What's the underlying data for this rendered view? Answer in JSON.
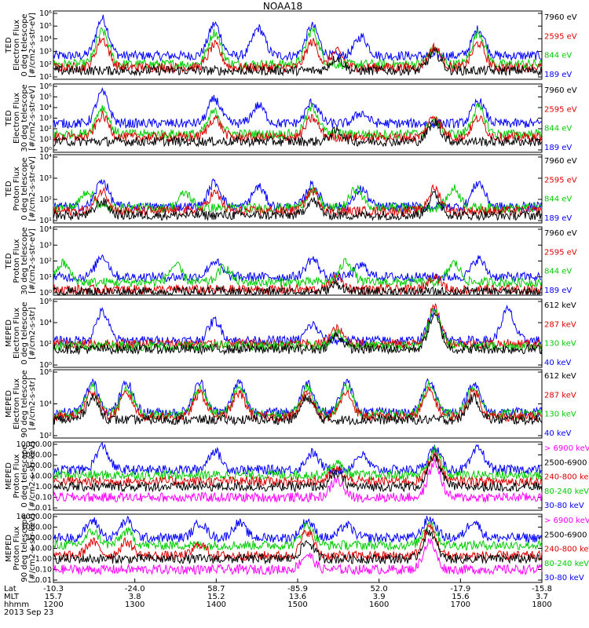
{
  "chart_data": {
    "type": "line",
    "title": "NOAA18",
    "date": "2013 Sep 23",
    "x_axis": {
      "row_labels": [
        "Lat",
        "MLT",
        "hhmm"
      ],
      "lat": [
        "-10.3",
        "-24.0",
        "58.7",
        "-85.9",
        "52.0",
        "-17.9",
        "-15.8"
      ],
      "mlt": [
        "15.7",
        "3.8",
        "15.2",
        "13.6",
        "3.9",
        "15.6",
        "3.7"
      ],
      "hhmm": [
        "1200",
        "1300",
        "1400",
        "1500",
        "1600",
        "1700",
        "1800"
      ]
    },
    "panels": [
      {
        "ylabel": [
          "TED",
          "Electron Flux",
          "0 deg telescope",
          "[#/cm2-s-str-eV]"
        ],
        "yticks": [
          "10⁶",
          "10⁵",
          "10⁴",
          "10³",
          "10²",
          "10¹"
        ],
        "legend": [
          "7960 eV",
          "2595 eV",
          "844 eV",
          "189 eV"
        ],
        "legend_colors": [
          "#000000",
          "#dd0000",
          "#00cc00",
          "#0000ff"
        ],
        "series": [
          {
            "color": "#0000ff",
            "base": 2.0,
            "peaks": [
              [
                0.1,
                5.5
              ],
              [
                0.33,
                5.0
              ],
              [
                0.42,
                4.6
              ],
              [
                0.53,
                4.8
              ],
              [
                0.63,
                3.8
              ],
              [
                0.87,
                4.5
              ]
            ]
          },
          {
            "color": "#00cc00",
            "base": 1.2,
            "peaks": [
              [
                0.1,
                4.3
              ],
              [
                0.33,
                4.2
              ],
              [
                0.53,
                4.4
              ],
              [
                0.78,
                2.6
              ],
              [
                0.87,
                4.2
              ]
            ]
          },
          {
            "color": "#dd0000",
            "base": 0.9,
            "peaks": [
              [
                0.1,
                3.6
              ],
              [
                0.33,
                3.0
              ],
              [
                0.53,
                3.3
              ],
              [
                0.58,
                2.4
              ],
              [
                0.78,
                2.8
              ],
              [
                0.87,
                3.2
              ]
            ]
          },
          {
            "color": "#000000",
            "base": 0.6,
            "peaks": [
              [
                0.58,
                1.8
              ],
              [
                0.78,
                2.3
              ]
            ]
          }
        ]
      },
      {
        "ylabel": [
          "TED",
          "Electron Flux",
          "30 deg telescope",
          "[#/cm2-s-str-eV]"
        ],
        "yticks": [
          "10⁶",
          "10⁵",
          "10⁴",
          "10³",
          "10²",
          "10¹",
          "10⁰"
        ],
        "legend": [
          "7960 eV",
          "2595 eV",
          "844 eV",
          "189 eV"
        ],
        "legend_colors": [
          "#000000",
          "#dd0000",
          "#00cc00",
          "#0000ff"
        ],
        "series": [
          {
            "color": "#0000ff",
            "base": 2.5,
            "peaks": [
              [
                0.1,
                5.4
              ],
              [
                0.33,
                4.8
              ],
              [
                0.42,
                4.2
              ],
              [
                0.53,
                4.5
              ],
              [
                0.63,
                3.5
              ],
              [
                0.87,
                4.6
              ]
            ]
          },
          {
            "color": "#00cc00",
            "base": 1.5,
            "peaks": [
              [
                0.1,
                4.0
              ],
              [
                0.33,
                3.6
              ],
              [
                0.53,
                4.0
              ],
              [
                0.78,
                2.8
              ],
              [
                0.87,
                4.0
              ]
            ]
          },
          {
            "color": "#dd0000",
            "base": 1.2,
            "peaks": [
              [
                0.1,
                3.2
              ],
              [
                0.33,
                3.0
              ],
              [
                0.53,
                3.0
              ],
              [
                0.78,
                3.2
              ],
              [
                0.87,
                3.0
              ]
            ]
          },
          {
            "color": "#000000",
            "base": 0.8,
            "peaks": [
              [
                0.58,
                1.8
              ],
              [
                0.78,
                2.6
              ]
            ]
          }
        ]
      },
      {
        "ylabel": [
          "TED",
          "Proton Flux",
          "0 deg telescope",
          "[#/cm2-s-str-eV]"
        ],
        "yticks": [
          "10⁴",
          "10³",
          "10²",
          "10¹"
        ],
        "legend": [
          "7960 eV",
          "2595 eV",
          "844 eV",
          "189 eV"
        ],
        "legend_colors": [
          "#000000",
          "#dd0000",
          "#00cc00",
          "#0000ff"
        ],
        "series": [
          {
            "color": "#0000ff",
            "base": 1.3,
            "peaks": [
              [
                0.1,
                3.8
              ],
              [
                0.33,
                3.6
              ],
              [
                0.42,
                3.2
              ],
              [
                0.53,
                3.4
              ],
              [
                0.63,
                3.0
              ],
              [
                0.87,
                3.6
              ]
            ]
          },
          {
            "color": "#00cc00",
            "base": 1.2,
            "peaks": [
              [
                0.07,
                2.8
              ],
              [
                0.27,
                2.6
              ],
              [
                0.53,
                2.8
              ],
              [
                0.62,
                3.0
              ],
              [
                0.82,
                3.0
              ]
            ]
          },
          {
            "color": "#dd0000",
            "base": 0.9,
            "peaks": [
              [
                0.1,
                2.8
              ],
              [
                0.33,
                2.6
              ],
              [
                0.53,
                2.8
              ],
              [
                0.78,
                3.0
              ]
            ]
          },
          {
            "color": "#000000",
            "base": 0.5,
            "peaks": [
              [
                0.1,
                1.8
              ],
              [
                0.53,
                1.9
              ],
              [
                0.78,
                2.4
              ]
            ]
          }
        ]
      },
      {
        "ylabel": [
          "TED",
          "Proton Flux",
          "30 deg telescope",
          "[#/cm2-s-str-eV]"
        ],
        "yticks": [
          "10⁴",
          "10³",
          "10²",
          "10¹",
          "10⁰"
        ],
        "legend": [
          "7960 eV",
          "2595 eV",
          "844 eV",
          "189 eV"
        ],
        "legend_colors": [
          "#000000",
          "#dd0000",
          "#00cc00",
          "#0000ff"
        ],
        "series": [
          {
            "color": "#0000ff",
            "base": 1.5,
            "peaks": [
              [
                0.1,
                3.5
              ],
              [
                0.33,
                3.0
              ],
              [
                0.53,
                3.2
              ],
              [
                0.63,
                2.6
              ],
              [
                0.87,
                3.2
              ]
            ]
          },
          {
            "color": "#00cc00",
            "base": 1.0,
            "peaks": [
              [
                0.02,
                2.8
              ],
              [
                0.25,
                2.6
              ],
              [
                0.35,
                2.4
              ],
              [
                0.6,
                3.0
              ],
              [
                0.82,
                2.8
              ]
            ]
          },
          {
            "color": "#dd0000",
            "base": 0.3,
            "peaks": [
              [
                0.58,
                1.4
              ],
              [
                0.78,
                1.6
              ]
            ]
          },
          {
            "color": "#000000",
            "base": 0.1,
            "peaks": [
              [
                0.58,
                0.8
              ]
            ]
          }
        ]
      },
      {
        "ylabel": [
          "MEPED",
          "Electron Flux",
          "0 deg telescope",
          "[#/cm2-s-str]"
        ],
        "yticks": [
          "10⁶",
          "10⁴",
          "10²",
          "10⁰"
        ],
        "legend": [
          "612 keV",
          "287 keV",
          "130 keV",
          "40 keV"
        ],
        "legend_colors": [
          "#000000",
          "#dd0000",
          "#00cc00",
          "#0000ff"
        ],
        "series": [
          {
            "color": "#0000ff",
            "base": 2.3,
            "peaks": [
              [
                0.1,
                5.0
              ],
              [
                0.33,
                4.2
              ],
              [
                0.53,
                3.8
              ],
              [
                0.78,
                5.0
              ],
              [
                0.93,
                5.2
              ]
            ]
          },
          {
            "color": "#dd0000",
            "base": 2.0,
            "peaks": [
              [
                0.58,
                3.4
              ],
              [
                0.78,
                5.4
              ]
            ]
          },
          {
            "color": "#00cc00",
            "base": 1.8,
            "peaks": [
              [
                0.58,
                3.0
              ],
              [
                0.78,
                5.0
              ]
            ]
          },
          {
            "color": "#000000",
            "base": 1.5,
            "peaks": [
              [
                0.58,
                2.8
              ],
              [
                0.78,
                4.6
              ]
            ]
          }
        ]
      },
      {
        "ylabel": [
          "MEPED",
          "Electron Flux",
          "90 deg telescope",
          "[#/cm2-s-str]"
        ],
        "yticks": [
          "10⁶",
          "10⁴",
          "10²"
        ],
        "legend": [
          "612 keV",
          "287 keV",
          "130 keV",
          "40 keV"
        ],
        "legend_colors": [
          "#000000",
          "#dd0000",
          "#00cc00",
          "#0000ff"
        ],
        "series": [
          {
            "color": "#0000ff",
            "base": 2.2,
            "peaks": [
              [
                0.08,
                5.0
              ],
              [
                0.15,
                5.0
              ],
              [
                0.3,
                5.0
              ],
              [
                0.38,
                5.0
              ],
              [
                0.52,
                5.0
              ],
              [
                0.6,
                5.0
              ],
              [
                0.77,
                5.2
              ],
              [
                0.86,
                5.0
              ]
            ]
          },
          {
            "color": "#00cc00",
            "base": 2.0,
            "peaks": [
              [
                0.08,
                4.6
              ],
              [
                0.15,
                4.5
              ],
              [
                0.3,
                4.5
              ],
              [
                0.38,
                4.5
              ],
              [
                0.52,
                4.5
              ],
              [
                0.6,
                4.6
              ],
              [
                0.77,
                4.8
              ],
              [
                0.86,
                4.6
              ]
            ]
          },
          {
            "color": "#dd0000",
            "base": 1.8,
            "peaks": [
              [
                0.08,
                4.2
              ],
              [
                0.15,
                4.0
              ],
              [
                0.3,
                4.0
              ],
              [
                0.38,
                4.0
              ],
              [
                0.52,
                4.0
              ],
              [
                0.6,
                4.0
              ],
              [
                0.77,
                4.2
              ],
              [
                0.86,
                4.2
              ]
            ]
          },
          {
            "color": "#000000",
            "base": 1.5,
            "peaks": [
              [
                0.08,
                3.6
              ],
              [
                0.52,
                3.6
              ],
              [
                0.86,
                3.6
              ]
            ]
          }
        ]
      },
      {
        "ylabel": [
          "MEPED",
          "Proton Flux",
          "0 deg telescope",
          "[#/cm2-s-str-keV]"
        ],
        "yticks": [
          "10000.00",
          "1000.00",
          "100.00",
          "10.00",
          "1.00",
          "0.10",
          "0.01"
        ],
        "legend": [
          "> 6900 keV",
          "2500-6900 keV",
          "240-800 keV",
          "80-240 keV",
          "30-80 keV"
        ],
        "legend_colors": [
          "#ff00ff",
          "#000000",
          "#dd0000",
          "#00cc00",
          "#0000ff"
        ],
        "series": [
          {
            "color": "#0000ff",
            "base": 3.6,
            "peaks": [
              [
                0.1,
                5.8
              ],
              [
                0.33,
                5.4
              ],
              [
                0.53,
                5.2
              ],
              [
                0.63,
                5.0
              ],
              [
                0.78,
                5.6
              ],
              [
                0.87,
                5.6
              ]
            ]
          },
          {
            "color": "#00cc00",
            "base": 3.1,
            "peaks": [
              [
                0.58,
                4.2
              ],
              [
                0.78,
                5.4
              ]
            ]
          },
          {
            "color": "#dd0000",
            "base": 2.5,
            "peaks": [
              [
                0.58,
                3.6
              ],
              [
                0.78,
                5.0
              ]
            ]
          },
          {
            "color": "#000000",
            "base": 2.0,
            "peaks": [
              [
                0.58,
                3.2
              ],
              [
                0.78,
                4.8
              ]
            ]
          },
          {
            "color": "#ff00ff",
            "base": 1.0,
            "peaks": [
              [
                0.58,
                2.6
              ],
              [
                0.78,
                4.2
              ]
            ]
          }
        ]
      },
      {
        "ylabel": [
          "MEPED",
          "Proton Flux",
          "90 deg telescope",
          "[#/cm2-s-str-keV]"
        ],
        "yticks": [
          "10000.00",
          "1000.00",
          "100.00",
          "10.00",
          "1.00",
          "0.10",
          "0.01"
        ],
        "legend": [
          "> 6900 keV",
          "2500-6900 keV",
          "240-800 keV",
          "80-240 keV",
          "30-80 keV"
        ],
        "legend_colors": [
          "#ff00ff",
          "#000000",
          "#dd0000",
          "#00cc00",
          "#0000ff"
        ],
        "series": [
          {
            "color": "#0000ff",
            "base": 4.0,
            "peaks": [
              [
                0.08,
                5.6
              ],
              [
                0.15,
                5.6
              ],
              [
                0.3,
                5.4
              ],
              [
                0.38,
                5.4
              ],
              [
                0.52,
                5.6
              ],
              [
                0.6,
                5.2
              ],
              [
                0.77,
                5.8
              ],
              [
                0.86,
                5.6
              ]
            ]
          },
          {
            "color": "#00cc00",
            "base": 3.3,
            "peaks": [
              [
                0.08,
                4.6
              ],
              [
                0.15,
                4.6
              ],
              [
                0.52,
                5.2
              ],
              [
                0.77,
                5.4
              ]
            ]
          },
          {
            "color": "#dd0000",
            "base": 2.3,
            "peaks": [
              [
                0.08,
                3.6
              ],
              [
                0.15,
                3.6
              ],
              [
                0.3,
                3.4
              ],
              [
                0.52,
                4.6
              ],
              [
                0.77,
                5.0
              ]
            ]
          },
          {
            "color": "#000000",
            "base": 2.0,
            "peaks": [
              [
                0.52,
                3.6
              ],
              [
                0.77,
                4.6
              ]
            ]
          },
          {
            "color": "#ff00ff",
            "base": 1.0,
            "peaks": [
              [
                0.52,
                2.4
              ],
              [
                0.77,
                3.6
              ]
            ]
          }
        ]
      }
    ]
  }
}
